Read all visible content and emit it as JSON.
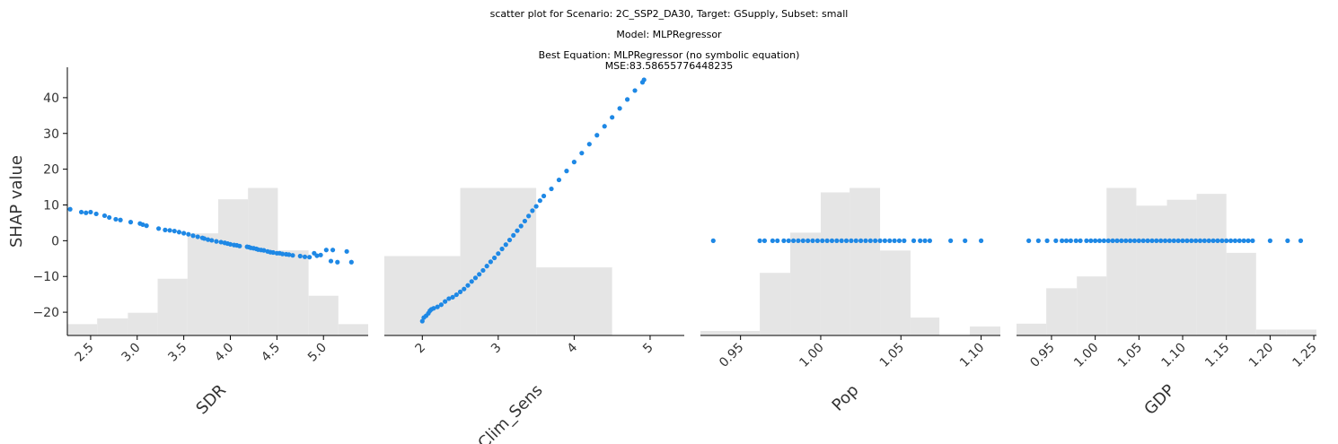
{
  "title": {
    "line1": "scatter plot for Scenario: 2C_SSP2_DA30, Target: GSupply, Subset: small",
    "line2": "Model: MLPRegressor",
    "line3": "Best Equation: MLPRegressor (no symbolic equation)",
    "line4": "MSE:83.58655776448235"
  },
  "colors": {
    "points": "#1e88e5",
    "hist": "#e5e5e5"
  },
  "chart_data": [
    {
      "type": "scatter",
      "xlabel": "SDR",
      "ylabel": "SHAP value",
      "xlim": [
        2.25,
        5.48
      ],
      "ylim": [
        -26.5,
        48.5
      ],
      "xticks": [
        2.5,
        3.0,
        3.5,
        4.0,
        4.5,
        5.0
      ],
      "xtick_labels": [
        "2.5",
        "3.0",
        "3.5",
        "4.0",
        "4.5",
        "5.0"
      ],
      "yticks": [
        -20,
        -10,
        0,
        10,
        20,
        30,
        40
      ],
      "ytick_labels": [
        "−20",
        "−10",
        "0",
        "10",
        "20",
        "30",
        "40"
      ],
      "tick_rotation": 45,
      "hist_bins": [
        2.25,
        2.57,
        2.9,
        3.22,
        3.54,
        3.87,
        4.19,
        4.51,
        4.84,
        5.16,
        5.48
      ],
      "hist_counts": [
        2,
        3,
        4,
        10,
        18,
        24,
        26,
        15,
        7,
        2
      ],
      "x": [
        2.28,
        2.4,
        2.45,
        2.5,
        2.56,
        2.65,
        2.7,
        2.77,
        2.82,
        2.93,
        3.03,
        3.06,
        3.1,
        3.23,
        3.3,
        3.35,
        3.4,
        3.45,
        3.5,
        3.55,
        3.6,
        3.65,
        3.7,
        3.72,
        3.76,
        3.8,
        3.85,
        3.9,
        3.94,
        3.97,
        4.0,
        4.04,
        4.07,
        4.1,
        4.18,
        4.2,
        4.22,
        4.25,
        4.28,
        4.3,
        4.33,
        4.36,
        4.4,
        4.43,
        4.46,
        4.5,
        4.53,
        4.56,
        4.6,
        4.63,
        4.67,
        4.75,
        4.8,
        4.85,
        4.9,
        4.93,
        4.97,
        5.03,
        5.08,
        5.1,
        5.15,
        5.25,
        5.3
      ],
      "y": [
        8.8,
        8.0,
        7.8,
        8.0,
        7.5,
        7.0,
        6.5,
        6.0,
        5.8,
        5.2,
        4.8,
        4.5,
        4.2,
        3.4,
        3.0,
        2.9,
        2.7,
        2.4,
        2.1,
        1.8,
        1.4,
        1.1,
        0.8,
        0.6,
        0.3,
        0.1,
        -0.2,
        -0.4,
        -0.6,
        -0.8,
        -1.0,
        -1.2,
        -1.3,
        -1.5,
        -1.7,
        -1.8,
        -2.0,
        -2.1,
        -2.3,
        -2.5,
        -2.6,
        -2.7,
        -3.0,
        -3.2,
        -3.3,
        -3.5,
        -3.5,
        -3.7,
        -3.8,
        -3.9,
        -4.1,
        -4.3,
        -4.5,
        -4.6,
        -3.5,
        -4.2,
        -4.0,
        -2.6,
        -5.7,
        -2.6,
        -6.0,
        -3.0,
        -6.0
      ]
    },
    {
      "type": "scatter",
      "xlabel": "Clim_Sens",
      "xlim": [
        1.5,
        5.45
      ],
      "ylim": [
        -26.5,
        48.5
      ],
      "xticks": [
        2,
        3,
        4,
        5
      ],
      "xtick_labels": [
        "2",
        "3",
        "4",
        "5"
      ],
      "tick_rotation": 45,
      "hist_bins": [
        1.5,
        2.5,
        3.5,
        4.5,
        5.45
      ],
      "hist_counts": [
        14,
        26,
        12,
        0
      ],
      "x": [
        2.0,
        2.02,
        2.05,
        2.08,
        2.1,
        2.12,
        2.15,
        2.2,
        2.25,
        2.3,
        2.35,
        2.4,
        2.45,
        2.5,
        2.55,
        2.6,
        2.65,
        2.7,
        2.75,
        2.8,
        2.85,
        2.9,
        2.95,
        3.0,
        3.05,
        3.1,
        3.15,
        3.2,
        3.25,
        3.3,
        3.35,
        3.4,
        3.45,
        3.5,
        3.55,
        3.6,
        3.7,
        3.8,
        3.9,
        4.0,
        4.1,
        4.2,
        4.3,
        4.4,
        4.5,
        4.6,
        4.7,
        4.8,
        4.9,
        4.92
      ],
      "y": [
        -22.5,
        -21.5,
        -21.0,
        -20.3,
        -19.6,
        -19.2,
        -18.9,
        -18.5,
        -17.9,
        -17.0,
        -16.2,
        -15.8,
        -15.1,
        -14.3,
        -13.5,
        -12.5,
        -11.4,
        -10.4,
        -9.4,
        -8.3,
        -7.1,
        -5.9,
        -4.8,
        -3.6,
        -2.3,
        -1.1,
        0.2,
        1.5,
        2.8,
        4.1,
        5.5,
        6.9,
        8.4,
        9.6,
        11.2,
        12.5,
        14.5,
        17.0,
        19.5,
        22.0,
        24.5,
        27.0,
        29.5,
        32.0,
        34.5,
        37.0,
        39.5,
        42.0,
        44.3,
        45.0
      ]
    },
    {
      "type": "scatter",
      "xlabel": "Pop",
      "xlim": [
        0.925,
        1.112
      ],
      "ylim": [
        -26.5,
        48.5
      ],
      "xticks": [
        0.95,
        1.0,
        1.05,
        1.1
      ],
      "xtick_labels": [
        "0.95",
        "1.00",
        "1.05",
        "1.10"
      ],
      "tick_rotation": 45,
      "hist_bins": [
        0.925,
        0.944,
        0.962,
        0.981,
        1.0,
        1.018,
        1.037,
        1.056,
        1.074,
        1.093,
        1.112
      ],
      "hist_counts": [
        1,
        1,
        14,
        23,
        32,
        33,
        19,
        4,
        0,
        2
      ],
      "x": [
        0.933,
        0.962,
        0.965,
        0.97,
        0.973,
        0.977,
        0.98,
        0.983,
        0.986,
        0.989,
        0.992,
        0.995,
        0.998,
        1.001,
        1.004,
        1.007,
        1.01,
        1.013,
        1.016,
        1.019,
        1.022,
        1.025,
        1.028,
        1.031,
        1.034,
        1.037,
        1.04,
        1.043,
        1.046,
        1.049,
        1.052,
        1.058,
        1.062,
        1.065,
        1.068,
        1.081,
        1.09,
        1.1
      ],
      "y": [
        0,
        0,
        0,
        0,
        0,
        0,
        0,
        0,
        0,
        0,
        0,
        0,
        0,
        0,
        0,
        0,
        0,
        0,
        0,
        0,
        0,
        0,
        0,
        0,
        0,
        0,
        0,
        0,
        0,
        0,
        0,
        0,
        0,
        0,
        0,
        0,
        0,
        0
      ]
    },
    {
      "type": "scatter",
      "xlabel": "GDP",
      "xlim": [
        0.91,
        1.253
      ],
      "ylim": [
        -26.5,
        48.5
      ],
      "xticks": [
        0.95,
        1.0,
        1.05,
        1.1,
        1.15,
        1.2,
        1.25
      ],
      "xtick_labels": [
        "0.95",
        "1.00",
        "1.05",
        "1.10",
        "1.15",
        "1.20",
        "1.25"
      ],
      "tick_rotation": 45,
      "hist_bins": [
        0.91,
        0.944,
        0.979,
        1.013,
        1.047,
        1.082,
        1.116,
        1.15,
        1.184,
        1.219,
        1.253
      ],
      "hist_counts": [
        2,
        8,
        10,
        25,
        22,
        23,
        24,
        14,
        1,
        1
      ],
      "x": [
        0.924,
        0.935,
        0.945,
        0.955,
        0.962,
        0.967,
        0.972,
        0.978,
        0.983,
        0.99,
        0.995,
        1.0,
        1.005,
        1.01,
        1.015,
        1.02,
        1.025,
        1.03,
        1.035,
        1.04,
        1.045,
        1.05,
        1.055,
        1.06,
        1.065,
        1.07,
        1.075,
        1.08,
        1.085,
        1.09,
        1.095,
        1.1,
        1.105,
        1.11,
        1.115,
        1.12,
        1.125,
        1.13,
        1.135,
        1.14,
        1.145,
        1.15,
        1.155,
        1.16,
        1.165,
        1.17,
        1.175,
        1.18,
        1.2,
        1.22,
        1.235
      ],
      "y": [
        0,
        0,
        0,
        0,
        0,
        0,
        0,
        0,
        0,
        0,
        0,
        0,
        0,
        0,
        0,
        0,
        0,
        0,
        0,
        0,
        0,
        0,
        0,
        0,
        0,
        0,
        0,
        0,
        0,
        0,
        0,
        0,
        0,
        0,
        0,
        0,
        0,
        0,
        0,
        0,
        0,
        0,
        0,
        0,
        0,
        0,
        0,
        0,
        0,
        0,
        0
      ]
    }
  ]
}
